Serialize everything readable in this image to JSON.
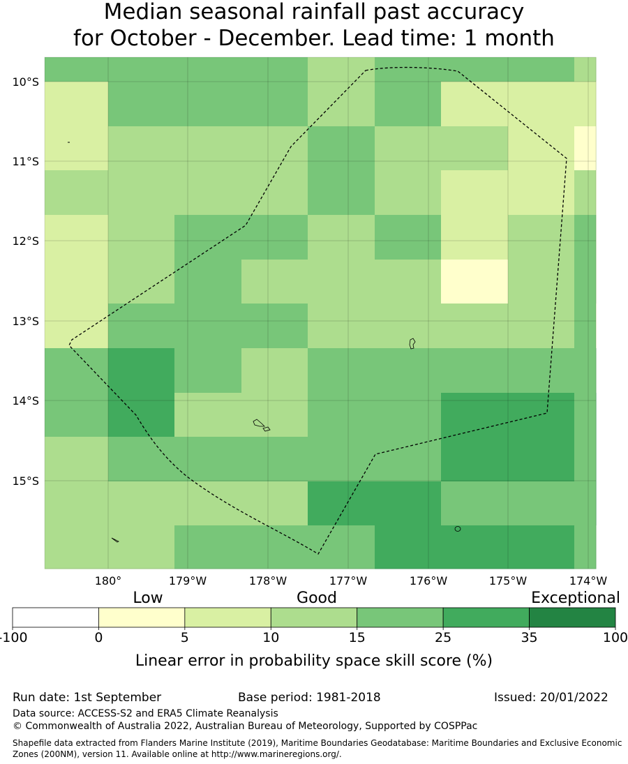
{
  "title": {
    "line1": "Median seasonal rainfall past accuracy",
    "line2": "for October - December. Lead time: 1 month"
  },
  "map": {
    "lat_labels": [
      "10°S",
      "11°S",
      "12°S",
      "13°S",
      "14°S",
      "15°S"
    ],
    "lon_labels": [
      "180°",
      "179°W",
      "178°W",
      "177°W",
      "176°W",
      "175°W",
      "174°W"
    ],
    "grid": [
      [
        4,
        4,
        4,
        4,
        3,
        4,
        4,
        4,
        3,
        3
      ],
      [
        2,
        4,
        4,
        4,
        3,
        4,
        2,
        2,
        2,
        2
      ],
      [
        2,
        3,
        3,
        3,
        4,
        3,
        3,
        2,
        2,
        1
      ],
      [
        3,
        3,
        3,
        3,
        4,
        3,
        2,
        2,
        2,
        3
      ],
      [
        2,
        3,
        4,
        4,
        3,
        4,
        2,
        3,
        3,
        4
      ],
      [
        2,
        3,
        4,
        3,
        3,
        3,
        1,
        3,
        3,
        4
      ],
      [
        2,
        4,
        4,
        4,
        3,
        3,
        3,
        3,
        2,
        4
      ],
      [
        4,
        5,
        4,
        3,
        4,
        4,
        4,
        4,
        4,
        4
      ],
      [
        4,
        5,
        3,
        3,
        4,
        4,
        5,
        5,
        5,
        4
      ],
      [
        3,
        4,
        4,
        4,
        4,
        4,
        5,
        5,
        5,
        4
      ],
      [
        3,
        3,
        3,
        3,
        5,
        5,
        4,
        4,
        5,
        4
      ],
      [
        3,
        3,
        4,
        4,
        4,
        5,
        5,
        5,
        4,
        4
      ]
    ]
  },
  "legend": {
    "categories": [
      "Low",
      "Good",
      "Exceptional"
    ],
    "ticks": [
      "-100",
      "0",
      "5",
      "10",
      "15",
      "25",
      "35",
      "100"
    ],
    "colors": [
      "#ffffff",
      "#ffffcc",
      "#d9f0a3",
      "#addd8e",
      "#78c679",
      "#41ab5d",
      "#238443"
    ],
    "label": "Linear error in probability space skill score (%)"
  },
  "footer": {
    "run_date": "Run date: 1st September",
    "base_period": "Base period: 1981-2018",
    "issued": "Issued: 20/01/2022",
    "data_source": "Data source: ACCESS-S2 and ERA5 Climate Reanalysis",
    "copyright": "© Commonwealth of Australia 2022, Australian Bureau of Meteorology, Supported by COSPPac",
    "shapefile": "Shapefile data extracted from Flanders Marine Institute (2019), Maritime Boundaries Geodatabase: Maritime Boundaries and Exclusive Economic Zones (200NM), version 11. Available online at http://www.marineregions.org/."
  }
}
